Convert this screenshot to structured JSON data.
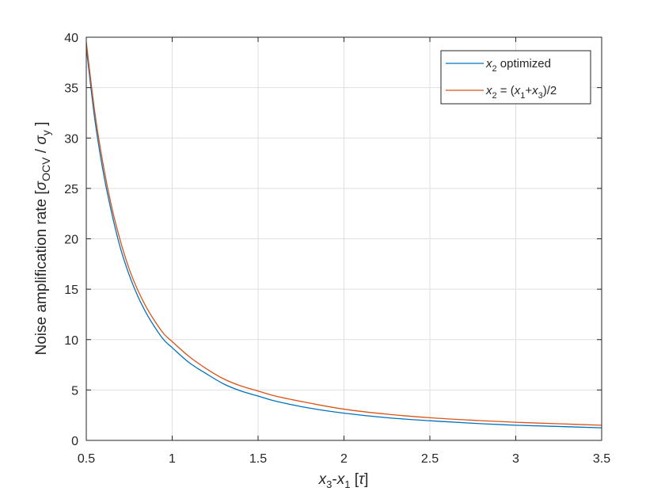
{
  "chart_data": {
    "type": "line",
    "title": "",
    "xlabel": {
      "var_a": "x",
      "sub_a": "3",
      "dash": "-",
      "var_b": "x",
      "sub_b": "1",
      "unit_open": " [",
      "unit_sym": "τ",
      "unit_close": "]"
    },
    "ylabel": {
      "prefix": "Noise amplification rate [",
      "sigma1": "σ",
      "sub1": "OCV",
      "slash": " / ",
      "sigma2": "σ",
      "sub2": "y",
      "suffix": " ]"
    },
    "xlim": [
      0.5,
      3.5
    ],
    "ylim": [
      0,
      40
    ],
    "xticks": [
      0.5,
      1,
      1.5,
      2,
      2.5,
      3,
      3.5
    ],
    "xtick_labels": [
      "0.5",
      "1",
      "1.5",
      "2",
      "2.5",
      "3",
      "3.5"
    ],
    "yticks": [
      0,
      5,
      10,
      15,
      20,
      25,
      30,
      35,
      40
    ],
    "ytick_labels": [
      "0",
      "5",
      "10",
      "15",
      "20",
      "25",
      "30",
      "35",
      "40"
    ],
    "grid": true,
    "legend_position": "top-right",
    "series": [
      {
        "color": "#0072BD",
        "legend": {
          "var": "x",
          "sub": "2",
          "rest": " optimized"
        },
        "x": [
          0.5,
          0.55,
          0.6,
          0.65,
          0.7,
          0.75,
          0.8,
          0.85,
          0.9,
          0.95,
          1.0,
          1.1,
          1.2,
          1.3,
          1.4,
          1.5,
          1.6,
          1.8,
          2.0,
          2.25,
          2.5,
          2.75,
          3.0,
          3.25,
          3.5
        ],
        "y": [
          39.0,
          31.8,
          26.5,
          22.4,
          19.0,
          16.4,
          14.3,
          12.6,
          11.2,
          10.0,
          9.2,
          7.7,
          6.6,
          5.6,
          4.9,
          4.4,
          3.9,
          3.2,
          2.7,
          2.25,
          1.95,
          1.7,
          1.5,
          1.38,
          1.25
        ]
      },
      {
        "color": "#D95319",
        "legend": {
          "var1": "x",
          "sub1": "2",
          "eq": " = (",
          "var2": "x",
          "sub2": "1",
          "plus": "+",
          "var3": "x",
          "sub3": "3",
          "rest": ")/2"
        },
        "x": [
          0.5,
          0.55,
          0.6,
          0.65,
          0.7,
          0.75,
          0.8,
          0.85,
          0.9,
          0.95,
          1.0,
          1.1,
          1.2,
          1.3,
          1.4,
          1.5,
          1.6,
          1.8,
          2.0,
          2.25,
          2.5,
          2.75,
          3.0,
          3.25,
          3.5
        ],
        "y": [
          39.5,
          32.5,
          27.2,
          23.0,
          19.7,
          17.0,
          14.9,
          13.2,
          11.8,
          10.6,
          9.8,
          8.3,
          7.1,
          6.1,
          5.4,
          4.9,
          4.4,
          3.7,
          3.1,
          2.6,
          2.25,
          2.0,
          1.8,
          1.65,
          1.5
        ]
      }
    ]
  }
}
